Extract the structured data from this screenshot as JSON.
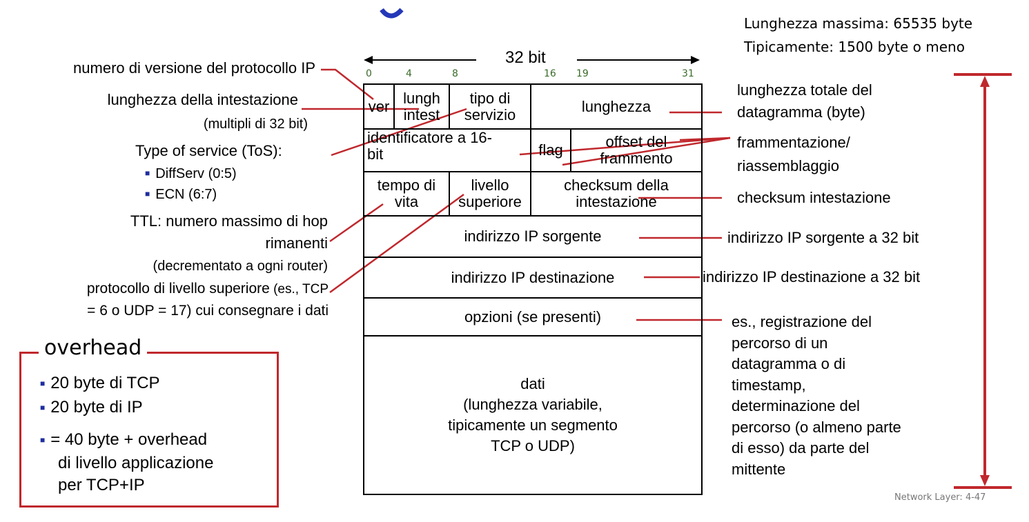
{
  "header": {
    "max_length": "Lunghezza massima: 65535 byte",
    "typical_length": "Tipicamente: 1500 byte o meno",
    "bit_width": "32 bit"
  },
  "bit_positions": [
    "0",
    "4",
    "8",
    "16",
    "19",
    "31"
  ],
  "fields": {
    "ver": "ver",
    "lungh_1": "lungh",
    "lungh_2": "intest",
    "tos_1": "tipo di",
    "tos_2": "servizio",
    "length": "lunghezza",
    "id_1": "identificatore a 16-",
    "id_2": "bit",
    "flag": "flag",
    "offset_1": "offset del",
    "offset_2": "frammento",
    "ttl_1": "tempo di",
    "ttl_2": "vita",
    "upper_1": "livello",
    "upper_2": "superiore",
    "checksum_1": "checksum della",
    "checksum_2": "intestazione",
    "src": "indirizzo IP sorgente",
    "dst": "indirizzo IP destinazione",
    "options": "opzioni (se presenti)",
    "data_lines": [
      "dati",
      "(lunghezza variabile,",
      "tipicamente un segmento",
      "TCP o UDP)"
    ]
  },
  "left_labels": {
    "version": "numero di versione del protocollo IP",
    "header_len": "lunghezza della intestazione",
    "header_len_note": "(multipli di 32 bit)",
    "tos": "Type of service (ToS):",
    "tos_items": [
      "DiffServ (0:5)",
      "ECN (6:7)"
    ],
    "ttl_1": "TTL: numero massimo di hop",
    "ttl_2": "rimanenti",
    "ttl_note": "(decrementato a ogni router)",
    "proto_1a": "protocollo di livello superiore",
    "proto_1b": " (es., TCP",
    "proto_2": "= 6 o UDP = 17) cui consegnare i dati"
  },
  "right_labels": {
    "total_len_1": "lunghezza totale del",
    "total_len_2": "datagramma (byte)",
    "frag_1": "frammentazione/",
    "frag_2": "riassemblaggio",
    "checksum": "checksum intestazione",
    "src": "indirizzo IP sorgente a 32 bit",
    "dst": "indirizzo IP destinazione a 32 bit",
    "options_lines": [
      "es., registrazione del",
      "percorso di un",
      "datagramma o di",
      "timestamp,",
      "determinazione del",
      "percorso (o almeno parte",
      "di esso) da parte del",
      "mittente"
    ]
  },
  "overhead": {
    "title": "overhead",
    "items": [
      "20 byte di TCP",
      "20 byte di IP",
      "= 40 byte + overhead"
    ],
    "item3_cont": [
      "di livello applicazione",
      "per TCP+IP"
    ]
  },
  "footer": "Network Layer: 4-47",
  "colors": {
    "accent_red": "#c0282d",
    "bullet_blue": "#1f2d9e",
    "bit_green": "#3a6b2a"
  }
}
